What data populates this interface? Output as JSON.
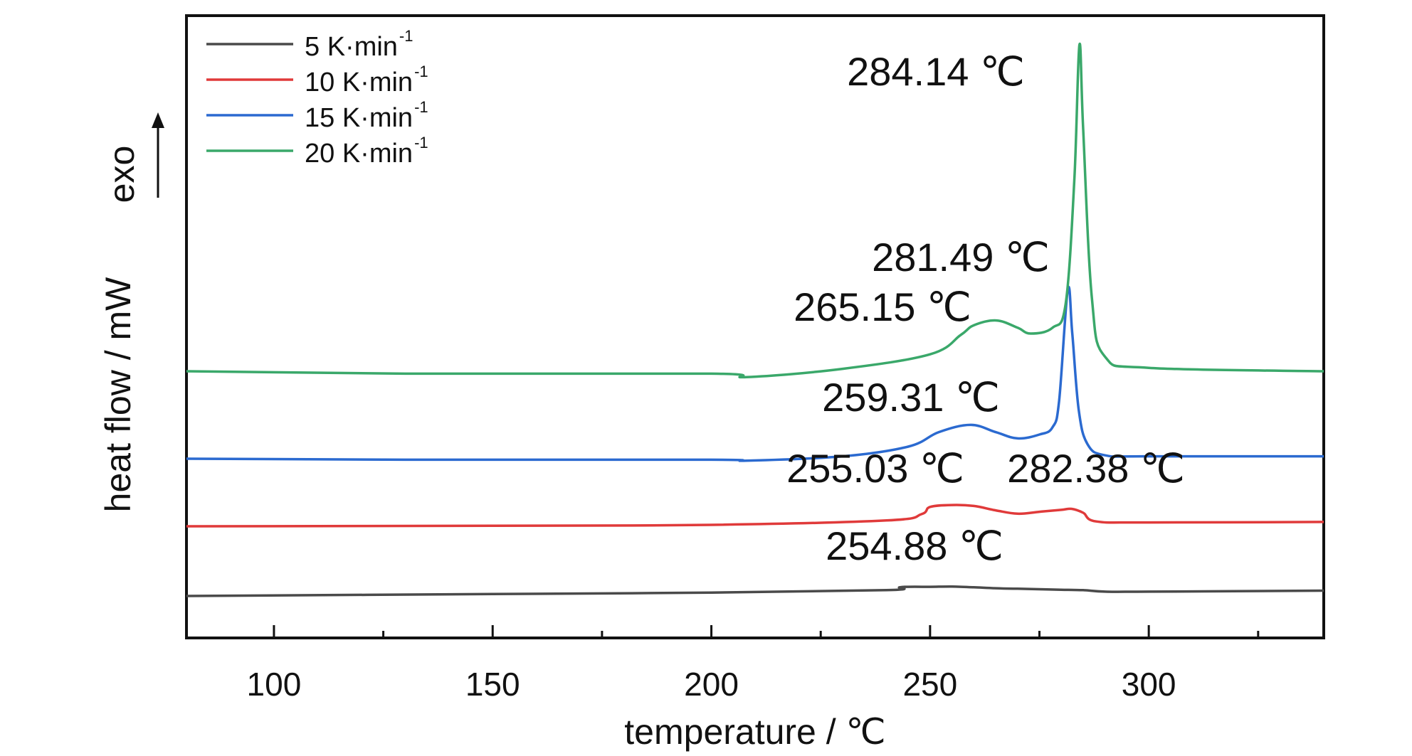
{
  "chart_data": {
    "type": "line",
    "xlabel": "temperature / ℃",
    "ylabel": "heat flow / mW",
    "direction_label": "exo",
    "xlim": [
      80,
      340
    ],
    "xticks": [
      100,
      150,
      200,
      250,
      300
    ],
    "grid": false,
    "legend_position": "top-left",
    "series": [
      {
        "name": "5 K·min",
        "name_sup": "-1",
        "color": "#4a4a4a",
        "x": [
          80,
          150,
          200,
          240,
          243,
          245,
          250,
          255,
          260,
          265,
          270,
          275,
          280,
          285,
          290,
          300,
          340
        ],
        "y": [
          0.0,
          0.04,
          0.07,
          0.12,
          0.18,
          0.19,
          0.19,
          0.195,
          0.18,
          0.16,
          0.15,
          0.14,
          0.13,
          0.12,
          0.09,
          0.09,
          0.11
        ]
      },
      {
        "name": "10 K·min",
        "name_sup": "-1",
        "color": "#e03a3a",
        "x": [
          80,
          150,
          200,
          240,
          248,
          250,
          255.03,
          260,
          265,
          270,
          275,
          280,
          282.38,
          285,
          288,
          300,
          340
        ],
        "y": [
          0.0,
          0.01,
          0.03,
          0.12,
          0.25,
          0.4,
          0.44,
          0.42,
          0.33,
          0.26,
          0.3,
          0.34,
          0.36,
          0.28,
          0.1,
          0.08,
          0.09
        ]
      },
      {
        "name": "15 K·min",
        "name_sup": "-1",
        "color": "#2b6ad0",
        "x": [
          80,
          130,
          200,
          208,
          230,
          245,
          252,
          259.31,
          265,
          270,
          275,
          278,
          279.5,
          281.49,
          282.5,
          284,
          286,
          290,
          300,
          340
        ],
        "y": [
          0.0,
          -0.02,
          -0.02,
          -0.04,
          0.05,
          0.25,
          0.55,
          0.7,
          0.55,
          0.42,
          0.5,
          0.65,
          1.2,
          3.5,
          2.6,
          1.0,
          0.3,
          0.07,
          0.05,
          0.05
        ]
      },
      {
        "name": "20 K·min",
        "name_sup": "-1",
        "color": "#3aa86a",
        "x": [
          80,
          130,
          200,
          208,
          230,
          250,
          257,
          260,
          265.15,
          270,
          273,
          278,
          281,
          283,
          284.14,
          285,
          287,
          290,
          300,
          340
        ],
        "y": [
          0.0,
          -0.05,
          -0.05,
          -0.12,
          0.05,
          0.35,
          0.75,
          0.95,
          1.05,
          0.9,
          0.78,
          0.9,
          1.4,
          4.0,
          6.75,
          5.0,
          1.5,
          0.3,
          0.07,
          0.0
        ]
      }
    ],
    "annotations": [
      {
        "text": "284.14 ℃",
        "series": 3,
        "x": 284.14
      },
      {
        "text": "281.49 ℃",
        "series": 2,
        "x": 281.49
      },
      {
        "text": "265.15 ℃",
        "series": 3,
        "x": 265.15
      },
      {
        "text": "259.31 ℃",
        "series": 2,
        "x": 259.31
      },
      {
        "text": "255.03 ℃",
        "series": 1,
        "x": 255.03
      },
      {
        "text": "282.38 ℃",
        "series": 1,
        "x": 282.38
      },
      {
        "text": "254.88 ℃",
        "series": 0,
        "x": 254.88
      }
    ]
  }
}
